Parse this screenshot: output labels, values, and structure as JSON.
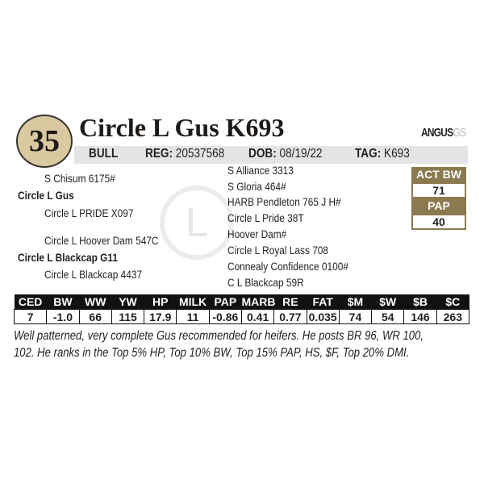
{
  "lot": {
    "number": "35",
    "name": "Circle L Gus K693"
  },
  "logo": {
    "brand": "ANGUS",
    "suffix": "GS"
  },
  "info": {
    "sex": "BULL",
    "reg_label": "REG:",
    "reg": "20537568",
    "dob_label": "DOB:",
    "dob": "08/19/22",
    "tag_label": "TAG:",
    "tag": "K693"
  },
  "pedigree": {
    "sire_sire": "S Chisum 6175#",
    "sire": "Circle L Gus",
    "sire_dam": "Circle L PRIDE X097",
    "dam_sire": "Circle L Hoover Dam 547C",
    "dam": "Circle L Blackcap G11",
    "dam_dam": "Circle L Blackcap 4437",
    "great": [
      "S Alliance 3313",
      "S Gloria 464#",
      "HARB Pendleton 765 J H#",
      "Circle L Pride 38T",
      "Hoover Dam#",
      "Circle L Royal Lass 708",
      "Connealy Confidence 0100#",
      "C L Blackcap 59R"
    ]
  },
  "watermark": "L",
  "measures": {
    "act_bw_label": "ACT BW",
    "act_bw": "71",
    "pap_label": "PAP",
    "pap": "40"
  },
  "epd": {
    "headers": [
      "CED",
      "BW",
      "WW",
      "YW",
      "HP",
      "MILK",
      "PAP",
      "MARB",
      "RE",
      "FAT",
      "$M",
      "$W",
      "$B",
      "$C"
    ],
    "values": [
      "7",
      "-1.0",
      "66",
      "115",
      "17.9",
      "11",
      "-0.86",
      "0.41",
      "0.77",
      "0.035",
      "74",
      "54",
      "146",
      "263"
    ]
  },
  "description": [
    "Well patterned, very complete Gus recommended for heifers.  He posts BR 96, WR 100,",
    "102.  He ranks in the Top 5% HP, Top 10% BW, Top 15% PAP, HS, $F, Top 20% DMI."
  ],
  "colors": {
    "accent": "#8b7a4f",
    "lot_circle": "#d8c9a0",
    "info_bar": "#e4e4e6"
  }
}
